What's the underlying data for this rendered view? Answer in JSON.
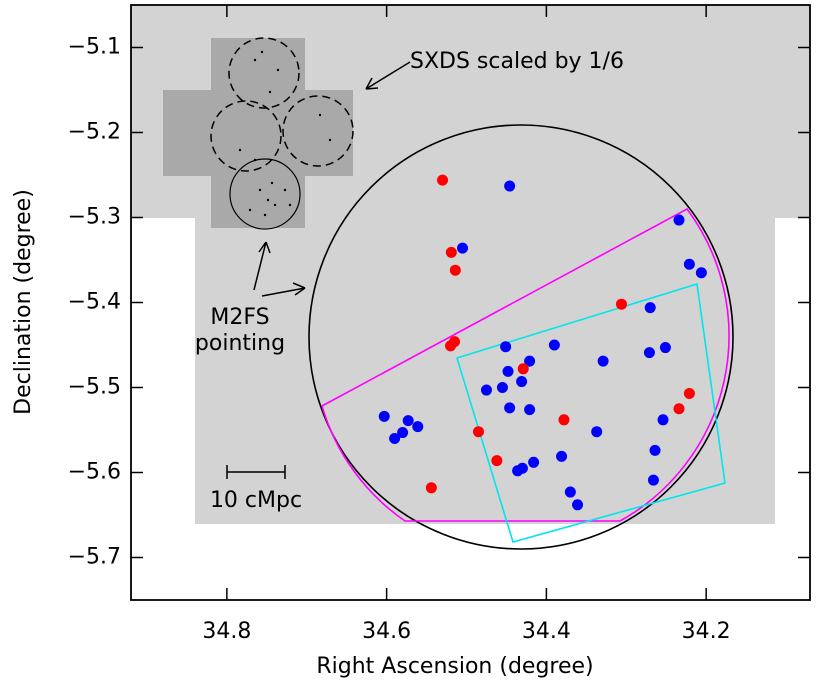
{
  "chart_data": {
    "type": "scatter",
    "xlabel": "Right Ascension (degree)",
    "ylabel": "Declination (degree)",
    "xlim": [
      34.92,
      34.07
    ],
    "ylim": [
      -5.75,
      -5.05
    ],
    "xticks": [
      34.8,
      34.6,
      34.4,
      34.2
    ],
    "yticks": [
      {
        "value": -5.1,
        "label": "−5.1"
      },
      {
        "value": -5.2,
        "label": "−5.2"
      },
      {
        "value": -5.3,
        "label": "−5.3"
      },
      {
        "value": -5.4,
        "label": "−5.4"
      },
      {
        "value": -5.5,
        "label": "−5.5"
      },
      {
        "value": -5.6,
        "label": "−5.6"
      },
      {
        "value": -5.7,
        "label": "−5.7"
      }
    ],
    "annotations": [
      "SXDS scaled by 1/6",
      "M2FS",
      "pointing",
      "10 cMpc"
    ],
    "series": [
      {
        "color": "#0000ff",
        "x": [
          34.446,
          34.505,
          34.234,
          34.221,
          34.206,
          34.27,
          34.451,
          34.39,
          34.421,
          34.329,
          34.251,
          34.271,
          34.448,
          34.431,
          34.475,
          34.455,
          34.446,
          34.421,
          34.603,
          34.573,
          34.561,
          34.58,
          34.59,
          34.337,
          34.254,
          34.264,
          34.381,
          34.416,
          34.43,
          34.436,
          34.266,
          34.37,
          34.361
        ],
        "values": [
          -5.263,
          -5.336,
          -5.303,
          -5.355,
          -5.365,
          -5.406,
          -5.452,
          -5.45,
          -5.469,
          -5.469,
          -5.453,
          -5.459,
          -5.481,
          -5.493,
          -5.503,
          -5.5,
          -5.524,
          -5.526,
          -5.534,
          -5.539,
          -5.546,
          -5.553,
          -5.56,
          -5.552,
          -5.538,
          -5.574,
          -5.581,
          -5.588,
          -5.595,
          -5.598,
          -5.609,
          -5.623,
          -5.638
        ]
      },
      {
        "color": "#ff0000",
        "x": [
          34.53,
          34.519,
          34.514,
          34.306,
          34.515,
          34.52,
          34.429,
          34.378,
          34.485,
          34.462,
          34.544,
          34.234,
          34.221
        ],
        "values": [
          -5.256,
          -5.341,
          -5.362,
          -5.402,
          -5.446,
          -5.451,
          -5.478,
          -5.538,
          -5.552,
          -5.586,
          -5.618,
          -5.525,
          -5.507
        ]
      }
    ]
  }
}
